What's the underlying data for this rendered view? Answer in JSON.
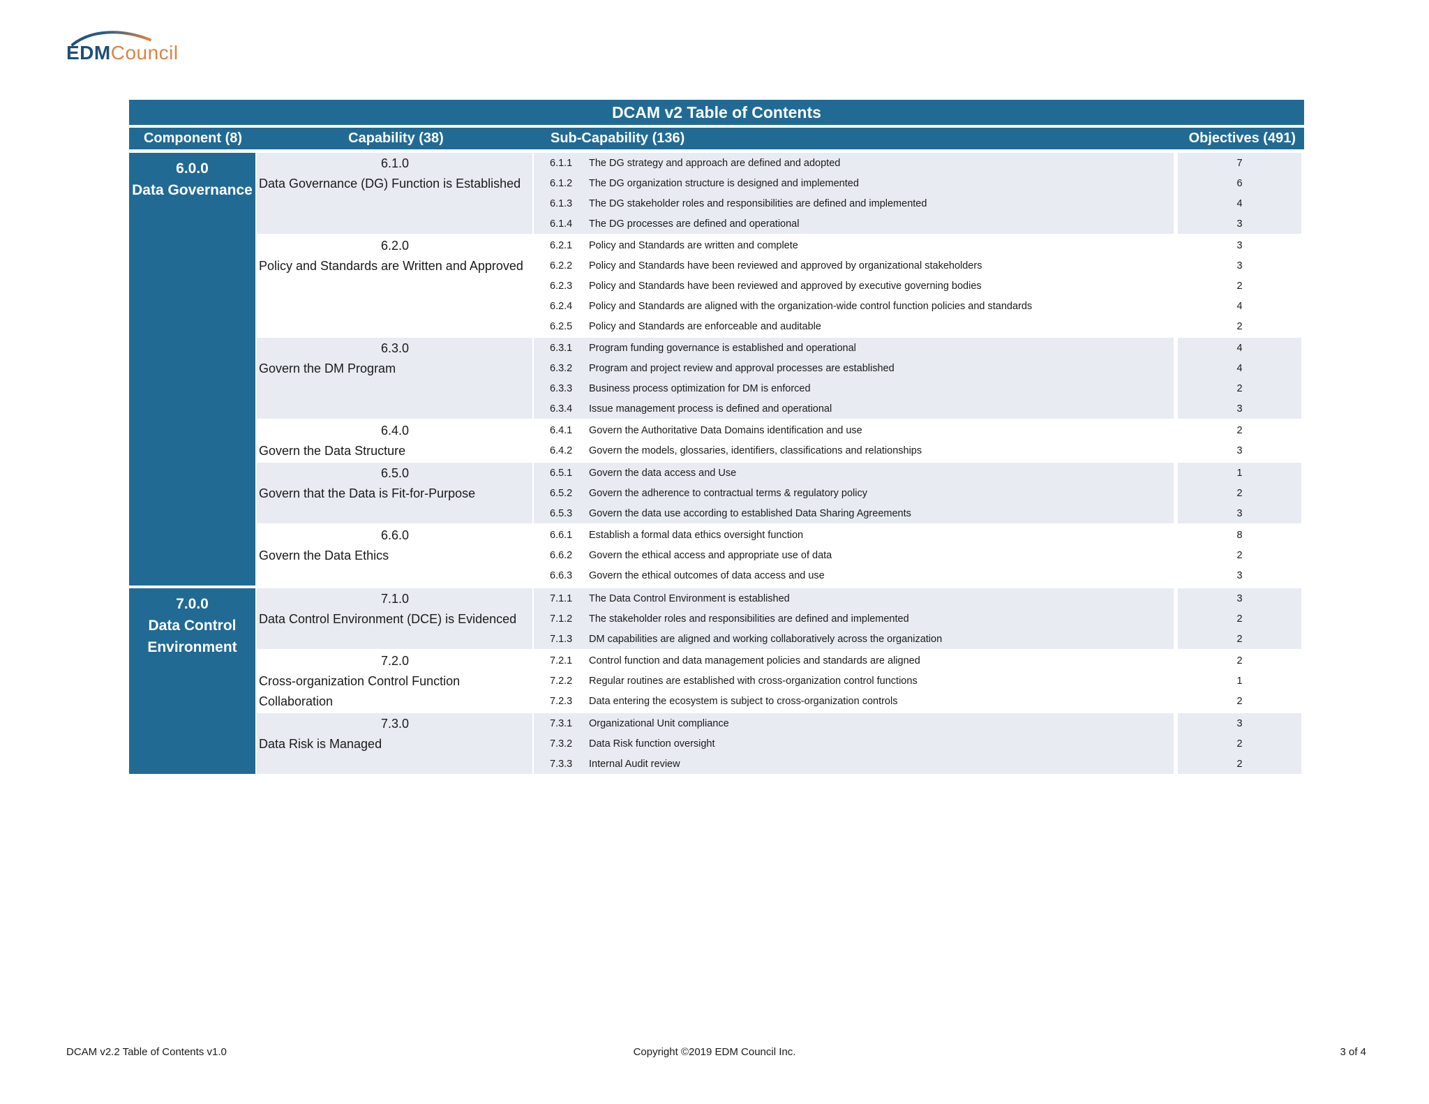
{
  "logo": {
    "edm": "EDM",
    "council": "Council"
  },
  "colors": {
    "header_blue": "#216a94",
    "row_light": "#e8ebf2",
    "row_white": "#ffffff",
    "logo_blue": "#1f4e79",
    "logo_orange": "#dd8343"
  },
  "table": {
    "title": "DCAM v2 Table of Contents",
    "columns": {
      "component": "Component (8)",
      "capability": "Capability (38)",
      "sub_capability": "Sub-Capability (136)",
      "objectives": "Objectives (491)"
    },
    "components": [
      {
        "id": "6.0.0",
        "name": "Data Governance",
        "capabilities": [
          {
            "id": "6.1.0",
            "name": "Data Governance (DG) Function is Established",
            "subs": [
              {
                "id": "6.1.1",
                "text": "The DG strategy and approach are defined and adopted",
                "objectives": 7
              },
              {
                "id": "6.1.2",
                "text": "The DG organization structure is designed and implemented",
                "objectives": 6
              },
              {
                "id": "6.1.3",
                "text": "The DG stakeholder roles and responsibilities are defined and implemented",
                "objectives": 4
              },
              {
                "id": "6.1.4",
                "text": "The DG processes are defined and operational",
                "objectives": 3
              }
            ]
          },
          {
            "id": "6.2.0",
            "name": "Policy and Standards are Written and Approved",
            "subs": [
              {
                "id": "6.2.1",
                "text": "Policy and Standards are written and complete",
                "objectives": 3
              },
              {
                "id": "6.2.2",
                "text": "Policy and Standards have been reviewed and approved by organizational stakeholders",
                "objectives": 3
              },
              {
                "id": "6.2.3",
                "text": "Policy and Standards have been reviewed and approved by executive governing bodies",
                "objectives": 2
              },
              {
                "id": "6.2.4",
                "text": "Policy and Standards are aligned with the organization-wide control function policies and standards",
                "objectives": 4
              },
              {
                "id": "6.2.5",
                "text": "Policy and Standards are enforceable and auditable",
                "objectives": 2
              }
            ]
          },
          {
            "id": "6.3.0",
            "name": "Govern the DM Program",
            "subs": [
              {
                "id": "6.3.1",
                "text": "Program funding governance is established and operational",
                "objectives": 4
              },
              {
                "id": "6.3.2",
                "text": "Program and project review and approval processes are established",
                "objectives": 4
              },
              {
                "id": "6.3.3",
                "text": "Business process optimization for DM is enforced",
                "objectives": 2
              },
              {
                "id": "6.3.4",
                "text": "Issue management process is defined and operational",
                "objectives": 3
              }
            ]
          },
          {
            "id": "6.4.0",
            "name": "Govern the Data Structure",
            "subs": [
              {
                "id": "6.4.1",
                "text": "Govern the Authoritative Data Domains identification and use",
                "objectives": 2
              },
              {
                "id": "6.4.2",
                "text": "Govern the models, glossaries, identifiers, classifications and relationships",
                "objectives": 3
              }
            ]
          },
          {
            "id": "6.5.0",
            "name": "Govern that the Data is Fit-for-Purpose",
            "subs": [
              {
                "id": "6.5.1",
                "text": "Govern the data access and Use",
                "objectives": 1
              },
              {
                "id": "6.5.2",
                "text": "Govern the adherence to contractual terms & regulatory policy",
                "objectives": 2
              },
              {
                "id": "6.5.3",
                "text": "Govern the data use according to established Data Sharing Agreements",
                "objectives": 3
              }
            ]
          },
          {
            "id": "6.6.0",
            "name": "Govern the Data Ethics",
            "subs": [
              {
                "id": "6.6.1",
                "text": "Establish a formal data ethics oversight function",
                "objectives": 8
              },
              {
                "id": "6.6.2",
                "text": "Govern the ethical access and appropriate use of data",
                "objectives": 2
              },
              {
                "id": "6.6.3",
                "text": "Govern the ethical outcomes of data access and use",
                "objectives": 3
              }
            ]
          }
        ]
      },
      {
        "id": "7.0.0",
        "name": "Data Control Environment",
        "capabilities": [
          {
            "id": "7.1.0",
            "name": "Data Control Environment (DCE) is Evidenced",
            "subs": [
              {
                "id": "7.1.1",
                "text": "The Data Control Environment is established",
                "objectives": 3
              },
              {
                "id": "7.1.2",
                "text": "The stakeholder roles and responsibilities are defined and implemented",
                "objectives": 2
              },
              {
                "id": "7.1.3",
                "text": "DM capabilities are aligned and working collaboratively across the organization",
                "objectives": 2
              }
            ]
          },
          {
            "id": "7.2.0",
            "name": "Cross-organization Control Function Collaboration",
            "subs": [
              {
                "id": "7.2.1",
                "text": "Control function and data management policies and standards are aligned",
                "objectives": 2
              },
              {
                "id": "7.2.2",
                "text": "Regular routines are established with cross-organization control functions",
                "objectives": 1
              },
              {
                "id": "7.2.3",
                "text": "Data entering the ecosystem is subject to cross-organization controls",
                "objectives": 2
              }
            ]
          },
          {
            "id": "7.3.0",
            "name": "Data Risk is Managed",
            "subs": [
              {
                "id": "7.3.1",
                "text": "Organizational Unit compliance",
                "objectives": 3
              },
              {
                "id": "7.3.2",
                "text": "Data Risk function oversight",
                "objectives": 2
              },
              {
                "id": "7.3.3",
                "text": "Internal Audit review",
                "objectives": 2
              }
            ]
          }
        ]
      }
    ]
  },
  "footer": {
    "left": "DCAM v2.2 Table of Contents v1.0",
    "center": "Copyright ©2019 EDM Council Inc.",
    "right": "3 of 4"
  }
}
